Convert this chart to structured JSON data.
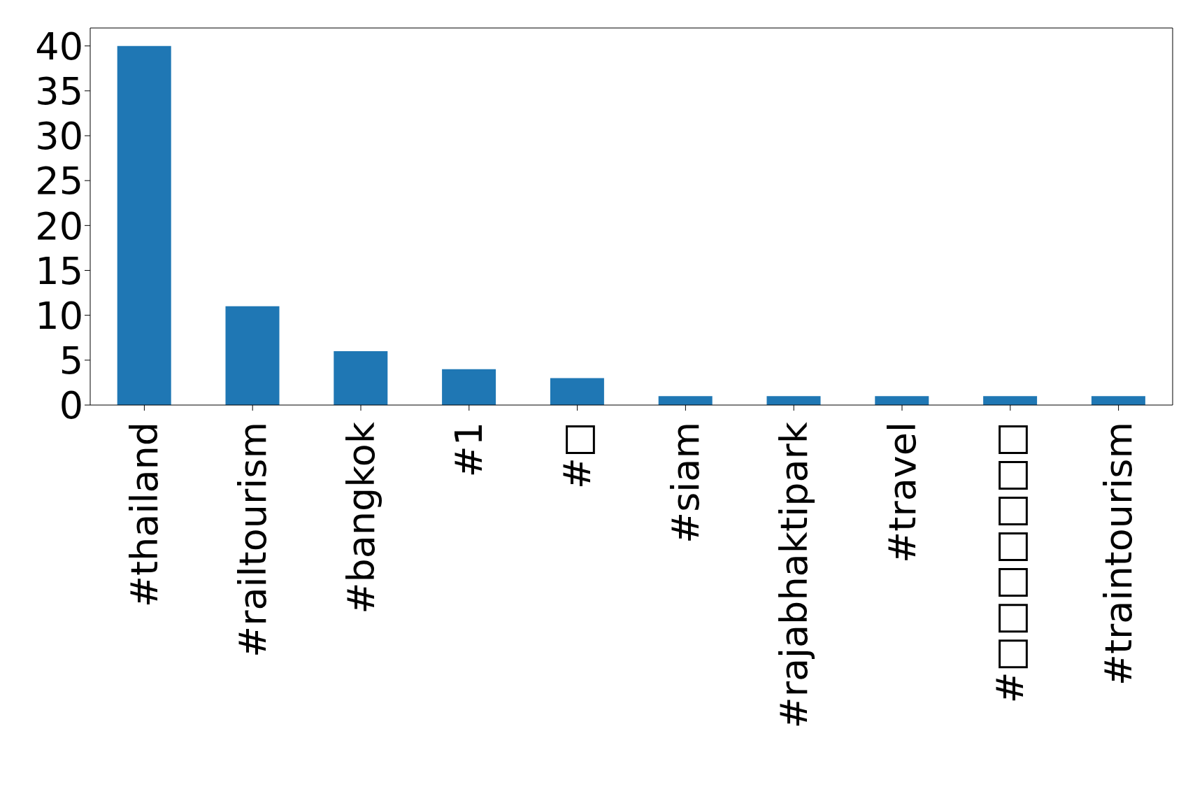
{
  "chart_data": {
    "type": "bar",
    "categories": [
      "#thailand",
      "#railtourism",
      "#bangkok",
      "#1",
      "#□",
      "#siam",
      "#rajabhaktipark",
      "#travel",
      "#□□□□□□□",
      "#traintourism"
    ],
    "values": [
      40,
      11,
      6,
      4,
      3,
      1,
      1,
      1,
      1,
      1
    ],
    "color": "#1f77b4",
    "ylim": [
      0,
      42
    ],
    "yticks": [
      0,
      5,
      10,
      15,
      20,
      25,
      30,
      35,
      40
    ],
    "grid": false
  }
}
